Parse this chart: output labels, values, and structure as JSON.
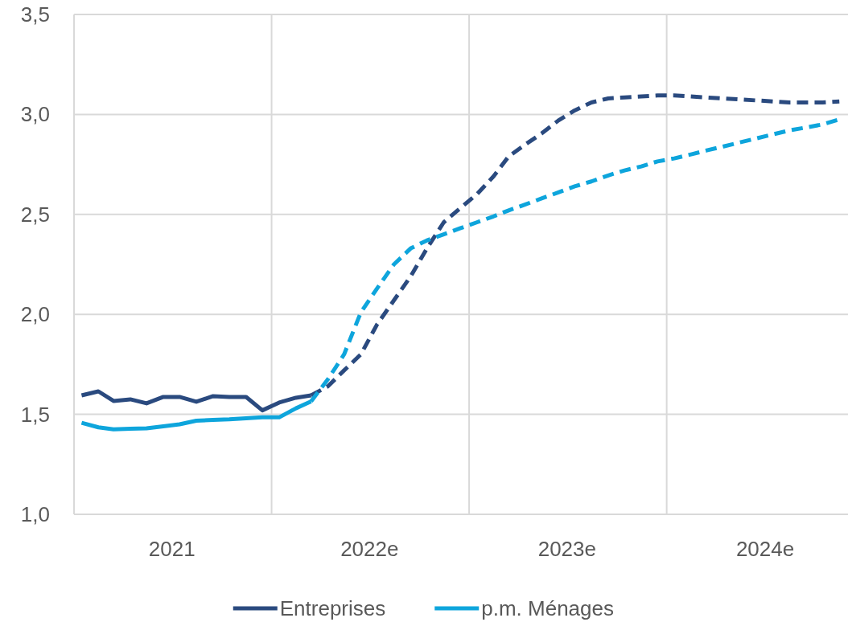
{
  "chart_data": {
    "type": "line",
    "x": [
      "2021-01-15",
      "2021-02-15",
      "2021-03-15",
      "2021-04-15",
      "2021-05-15",
      "2021-06-15",
      "2021-07-15",
      "2021-08-15",
      "2021-09-15",
      "2021-10-15",
      "2021-11-15",
      "2021-12-15",
      "2022-01-15",
      "2022-02-15",
      "2022-03-15"
    ],
    "series": [
      {
        "name": "Entreprises",
        "color": "#2a4a7f",
        "line_style": "solid",
        "values": [
          1.595,
          1.615,
          1.567,
          1.575,
          1.555,
          1.587,
          1.587,
          1.563,
          1.591,
          1.587,
          1.587,
          1.52,
          1.559,
          1.583,
          1.595
        ]
      },
      {
        "name": "p.m. Ménages",
        "color": "#0ea5dc",
        "line_style": "solid",
        "values": [
          1.458,
          1.435,
          1.425,
          1.428,
          1.43,
          1.44,
          1.45,
          1.468,
          1.472,
          1.475,
          1.48,
          1.485,
          1.485,
          1.53,
          1.565
        ]
      },
      {
        "color": "#2a4a7f",
        "line_style": "dashed",
        "x": [
          "2022-03-15",
          "2022-04-15",
          "2022-05-15",
          "2022-06-15",
          "2022-07-15",
          "2022-08-15",
          "2022-09-15",
          "2022-10-15",
          "2022-11-15",
          "2022-12-15",
          "2023-01-15",
          "2023-02-15",
          "2023-03-15",
          "2023-04-15",
          "2023-05-15",
          "2023-06-15",
          "2023-07-15",
          "2023-08-15",
          "2023-09-15",
          "2023-10-15",
          "2023-11-15",
          "2023-12-15",
          "2024-01-15",
          "2024-02-15",
          "2024-03-15",
          "2024-04-15",
          "2024-05-15",
          "2024-06-15",
          "2024-07-15",
          "2024-08-15",
          "2024-09-15",
          "2024-10-15",
          "2024-11-15"
        ],
        "values": [
          1.595,
          1.64,
          1.72,
          1.8,
          1.95,
          2.07,
          2.19,
          2.33,
          2.46,
          2.53,
          2.6,
          2.69,
          2.79,
          2.85,
          2.905,
          2.97,
          3.02,
          3.06,
          3.08,
          3.085,
          3.09,
          3.095,
          3.095,
          3.09,
          3.085,
          3.08,
          3.075,
          3.07,
          3.065,
          3.06,
          3.06,
          3.06,
          3.065
        ]
      },
      {
        "color": "#0ea5dc",
        "line_style": "dashed",
        "x": [
          "2022-03-15",
          "2022-04-15",
          "2022-05-15",
          "2022-06-15",
          "2022-07-15",
          "2022-08-15",
          "2022-09-15",
          "2022-10-15",
          "2022-11-15",
          "2022-12-15",
          "2023-01-15",
          "2023-02-15",
          "2023-03-15",
          "2023-04-15",
          "2023-05-15",
          "2023-06-15",
          "2023-07-15",
          "2023-08-15",
          "2023-09-15",
          "2023-10-15",
          "2023-11-15",
          "2023-12-15",
          "2024-01-15",
          "2024-02-15",
          "2024-03-15",
          "2024-04-15",
          "2024-05-15",
          "2024-06-15",
          "2024-07-15",
          "2024-08-15",
          "2024-09-15",
          "2024-10-15",
          "2024-11-15"
        ],
        "values": [
          1.565,
          1.675,
          1.8,
          2.01,
          2.13,
          2.25,
          2.33,
          2.37,
          2.4,
          2.43,
          2.46,
          2.49,
          2.52,
          2.55,
          2.58,
          2.61,
          2.64,
          2.665,
          2.695,
          2.72,
          2.74,
          2.765,
          2.78,
          2.8,
          2.82,
          2.84,
          2.86,
          2.88,
          2.9,
          2.92,
          2.935,
          2.95,
          2.975
        ]
      }
    ],
    "xlim": [
      "2021-01-01",
      "2024-12-01"
    ],
    "xticks": [
      {
        "value": "2022-01-01",
        "label": null
      },
      {
        "value": "2023-01-01",
        "label": null
      },
      {
        "value": "2024-01-01",
        "label": null
      },
      {
        "value": "2021-07-01",
        "label": "2021"
      },
      {
        "value": "2022-07-01",
        "label": "2022e"
      },
      {
        "value": "2023-07-01",
        "label": "2023e"
      },
      {
        "value": "2024-07-01",
        "label": "2024e"
      }
    ],
    "ylim": [
      1.0,
      3.5
    ],
    "yticks": [
      {
        "value": 1.0,
        "label": "1,0"
      },
      {
        "value": 1.5,
        "label": "1,5"
      },
      {
        "value": 2.0,
        "label": "2,0"
      },
      {
        "value": 2.5,
        "label": "2,5"
      },
      {
        "value": 3.0,
        "label": "3,0"
      },
      {
        "value": 3.5,
        "label": "3,5"
      }
    ],
    "grid": true,
    "legend": "bottom",
    "marker": "none"
  }
}
